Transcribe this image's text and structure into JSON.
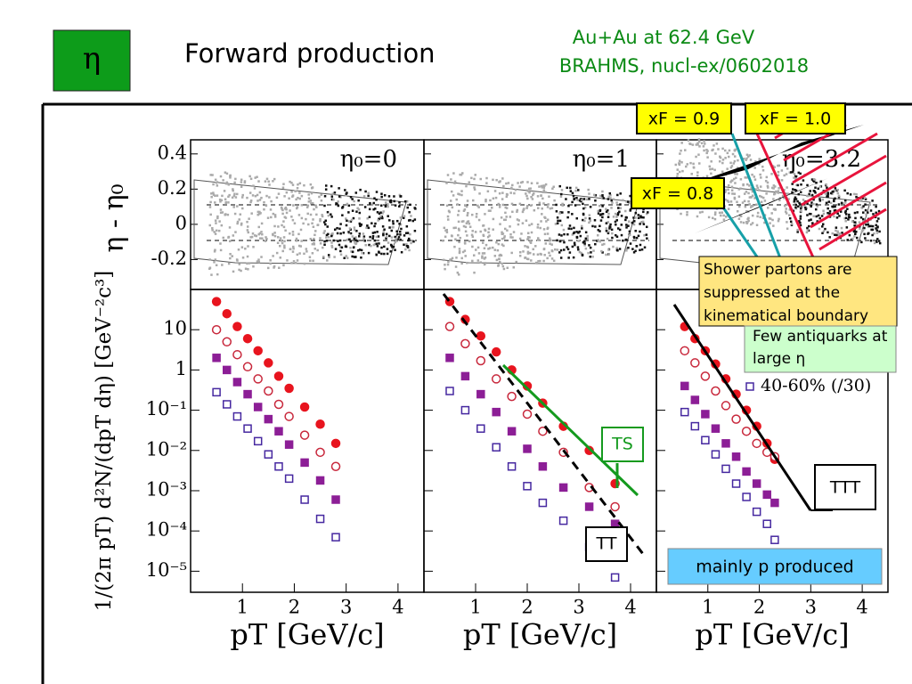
{
  "header": {
    "symbol": "η",
    "title": "Forward production",
    "system": "Au+Au at 62.4 GeV",
    "reference": "BRAHMS, nucl-ex/0602018"
  },
  "annotations": {
    "xf09": "xF = 0.9",
    "xf10": "xF = 1.0",
    "xf08": "xF = 0.8",
    "shower": "Shower partons are suppressed at the kinematical boundary",
    "antiquarks": "Few antiquarks at large η",
    "mainly_p": "mainly p produced",
    "tt": "TT",
    "ts": "TS",
    "ttt": "TTT"
  },
  "top_panels": {
    "ylabel": "η - η₀",
    "ylim": [
      -0.37,
      0.48
    ],
    "yticks": [
      0.4,
      0.2,
      0,
      -0.2
    ],
    "labels": [
      "η₀=0",
      "η₀=1",
      "η₀=3.2"
    ]
  },
  "chart_data": [
    {
      "type": "scatter",
      "log_y": true,
      "xlabel": "pT [GeV/c]",
      "ylabel": "1/(2π pT) d²N/(dpT dη) [GeV⁻²c³]",
      "xlim": [
        0,
        4.5
      ],
      "xticks": [
        1,
        2,
        3,
        4
      ],
      "ylim": [
        3e-06,
        100
      ],
      "yticks": [
        {
          "value": 10,
          "label": "10"
        },
        {
          "value": 1,
          "label": "1"
        },
        {
          "value": 0.1,
          "label": "10⁻¹"
        },
        {
          "value": 0.01,
          "label": "10⁻²"
        },
        {
          "value": 0.001,
          "label": "10⁻³"
        },
        {
          "value": 0.0001,
          "label": "10⁻⁴"
        },
        {
          "value": 1e-05,
          "label": "10⁻⁵"
        }
      ],
      "x": [
        0.5,
        0.7,
        0.9,
        1.1,
        1.3,
        1.5,
        1.7,
        1.9,
        2.2,
        2.5,
        2.8
      ],
      "series": [
        {
          "color": "#e8141e",
          "marker": "filled-circle",
          "values": [
            50,
            25,
            12,
            6,
            3,
            1.5,
            0.7,
            0.35,
            0.12,
            0.045,
            0.015
          ]
        },
        {
          "color": "#c8283c",
          "marker": "open-circle",
          "values": [
            10,
            5,
            2.4,
            1.2,
            0.6,
            0.3,
            0.14,
            0.07,
            0.024,
            0.009,
            0.004
          ]
        },
        {
          "color": "#8c1e96",
          "marker": "filled-square",
          "values": [
            2,
            1,
            0.5,
            0.25,
            0.12,
            0.06,
            0.03,
            0.014,
            0.005,
            0.0018,
            0.0006
          ]
        },
        {
          "color": "#4628a0",
          "marker": "open-square",
          "values": [
            0.28,
            0.14,
            0.07,
            0.035,
            0.017,
            0.008,
            0.004,
            0.002,
            0.0006,
            0.0002,
            7e-05
          ]
        }
      ]
    },
    {
      "type": "scatter",
      "log_y": true,
      "xlabel": "pT [GeV/c]",
      "xlim": [
        0,
        4.5
      ],
      "xticks": [
        1,
        2,
        3,
        4
      ],
      "ylim": [
        3e-06,
        100
      ],
      "x": [
        0.5,
        0.8,
        1.1,
        1.4,
        1.7,
        2.0,
        2.3,
        2.7,
        3.2,
        3.7
      ],
      "series": [
        {
          "color": "#e8141e",
          "marker": "filled-circle",
          "values": [
            50,
            18,
            7,
            2.8,
            1.0,
            0.4,
            0.15,
            0.04,
            0.01,
            0.0015
          ]
        },
        {
          "color": "#c8283c",
          "marker": "open-circle",
          "values": [
            12,
            4.5,
            1.7,
            0.6,
            0.22,
            0.08,
            0.03,
            0.009,
            0.0012,
            0.0004
          ]
        },
        {
          "color": "#8c1e96",
          "marker": "filled-square",
          "values": [
            2,
            0.7,
            0.25,
            0.09,
            0.03,
            0.011,
            0.004,
            0.0012,
            0.0004,
            0.00015
          ]
        },
        {
          "color": "#4628a0",
          "marker": "open-square",
          "values": [
            0.3,
            0.1,
            0.035,
            0.012,
            0.004,
            0.0013,
            0.0005,
            0.00018,
            4e-05,
            7e-06
          ]
        }
      ]
    },
    {
      "type": "scatter",
      "log_y": true,
      "xlabel": "pT [GeV/c]",
      "xlim": [
        0,
        4.5
      ],
      "xticks": [
        1,
        2,
        3,
        4
      ],
      "ylim": [
        3e-06,
        100
      ],
      "x": [
        0.55,
        0.75,
        0.95,
        1.15,
        1.35,
        1.55,
        1.75,
        1.95,
        2.15,
        2.3
      ],
      "series": [
        {
          "color": "#e8141e",
          "marker": "filled-circle",
          "values": [
            12,
            6,
            3,
            1.4,
            0.6,
            0.25,
            0.1,
            0.04,
            0.015,
            0.006
          ]
        },
        {
          "color": "#c8283c",
          "marker": "open-circle",
          "values": [
            3,
            1.5,
            0.7,
            0.3,
            0.13,
            0.06,
            0.03,
            0.015,
            0.009,
            0.007
          ]
        },
        {
          "color": "#8c1e96",
          "marker": "filled-square",
          "values": [
            0.4,
            0.18,
            0.08,
            0.035,
            0.015,
            0.007,
            0.003,
            0.0015,
            0.0008,
            0.0005
          ]
        },
        {
          "name": "40-60% (/30)",
          "color": "#4628a0",
          "marker": "open-square",
          "values": [
            0.09,
            0.04,
            0.018,
            0.008,
            0.0035,
            0.0015,
            0.0007,
            0.0003,
            0.00015,
            6e-05
          ]
        }
      ]
    }
  ]
}
